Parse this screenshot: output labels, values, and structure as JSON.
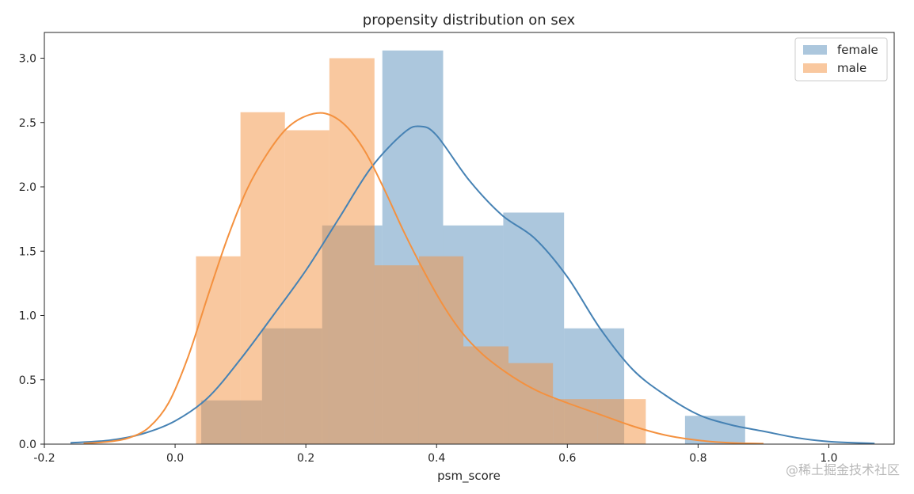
{
  "chart_data": {
    "type": "bar",
    "subtype": "histogram-with-kde",
    "title": "propensity distribution on sex",
    "xlabel": "psm_score",
    "ylabel": "",
    "xlim": [
      -0.2,
      1.1
    ],
    "ylim": [
      0,
      3.2
    ],
    "xticks": [
      -0.2,
      0.0,
      0.2,
      0.4,
      0.6,
      0.8,
      1.0
    ],
    "yticks": [
      0.0,
      0.5,
      1.0,
      1.5,
      2.0,
      2.5,
      3.0
    ],
    "grid": false,
    "legend_position": "top-right",
    "series": [
      {
        "name": "female",
        "color": "#4682b4",
        "bar_alpha": 0.45,
        "bins": [
          {
            "x0": 0.04,
            "x1": 0.133,
            "value": 0.34
          },
          {
            "x0": 0.133,
            "x1": 0.225,
            "value": 0.9
          },
          {
            "x0": 0.225,
            "x1": 0.317,
            "value": 1.7
          },
          {
            "x0": 0.317,
            "x1": 0.41,
            "value": 3.06
          },
          {
            "x0": 0.41,
            "x1": 0.502,
            "value": 1.7
          },
          {
            "x0": 0.502,
            "x1": 0.595,
            "value": 1.8
          },
          {
            "x0": 0.595,
            "x1": 0.687,
            "value": 0.9
          },
          {
            "x0": 0.687,
            "x1": 0.78,
            "value": 0.0
          },
          {
            "x0": 0.78,
            "x1": 0.872,
            "value": 0.22
          }
        ],
        "kde": {
          "x": [
            -0.16,
            -0.1,
            -0.05,
            0.0,
            0.05,
            0.1,
            0.15,
            0.2,
            0.25,
            0.3,
            0.35,
            0.375,
            0.4,
            0.45,
            0.5,
            0.55,
            0.6,
            0.65,
            0.7,
            0.75,
            0.8,
            0.85,
            0.9,
            0.95,
            1.0,
            1.07
          ],
          "y": [
            0.01,
            0.03,
            0.08,
            0.18,
            0.36,
            0.66,
            1.0,
            1.35,
            1.75,
            2.15,
            2.42,
            2.47,
            2.4,
            2.05,
            1.78,
            1.6,
            1.3,
            0.9,
            0.58,
            0.38,
            0.23,
            0.15,
            0.1,
            0.05,
            0.02,
            0.005
          ]
        }
      },
      {
        "name": "male",
        "color": "#f4913f",
        "bar_alpha": 0.5,
        "bins": [
          {
            "x0": 0.032,
            "x1": 0.1,
            "value": 1.46
          },
          {
            "x0": 0.1,
            "x1": 0.168,
            "value": 2.58
          },
          {
            "x0": 0.168,
            "x1": 0.236,
            "value": 2.44
          },
          {
            "x0": 0.236,
            "x1": 0.305,
            "value": 3.0
          },
          {
            "x0": 0.305,
            "x1": 0.373,
            "value": 1.39
          },
          {
            "x0": 0.373,
            "x1": 0.441,
            "value": 1.46
          },
          {
            "x0": 0.441,
            "x1": 0.51,
            "value": 0.76
          },
          {
            "x0": 0.51,
            "x1": 0.578,
            "value": 0.63
          },
          {
            "x0": 0.578,
            "x1": 0.646,
            "value": 0.35
          },
          {
            "x0": 0.646,
            "x1": 0.72,
            "value": 0.35
          }
        ],
        "kde": {
          "x": [
            -0.14,
            -0.1,
            -0.07,
            -0.04,
            -0.01,
            0.02,
            0.05,
            0.08,
            0.11,
            0.14,
            0.17,
            0.2,
            0.23,
            0.26,
            0.29,
            0.32,
            0.35,
            0.38,
            0.41,
            0.44,
            0.47,
            0.5,
            0.53,
            0.56,
            0.6,
            0.65,
            0.7,
            0.75,
            0.8,
            0.85,
            0.9
          ],
          "y": [
            0.005,
            0.02,
            0.05,
            0.13,
            0.32,
            0.68,
            1.15,
            1.6,
            1.98,
            2.25,
            2.45,
            2.55,
            2.57,
            2.48,
            2.28,
            1.98,
            1.65,
            1.35,
            1.08,
            0.86,
            0.7,
            0.58,
            0.48,
            0.4,
            0.32,
            0.23,
            0.14,
            0.07,
            0.03,
            0.01,
            0.004
          ]
        }
      }
    ]
  },
  "watermark": "@稀土掘金技术社区"
}
